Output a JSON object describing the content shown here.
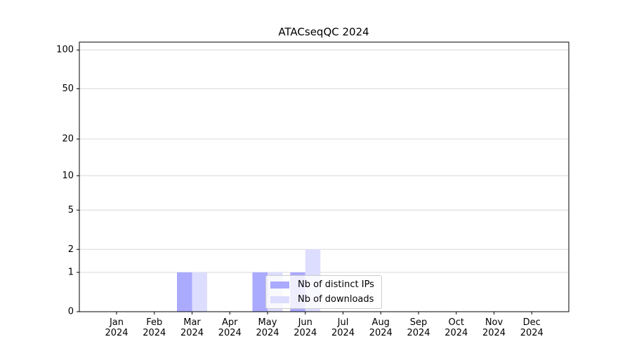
{
  "chart_data": {
    "type": "bar",
    "title": "ATACseqQC 2024",
    "categories": [
      "Jan 2024",
      "Feb 2024",
      "Mar 2024",
      "Apr 2024",
      "May 2024",
      "Jun 2024",
      "Jul 2024",
      "Aug 2024",
      "Sep 2024",
      "Oct 2024",
      "Nov 2024",
      "Dec 2024"
    ],
    "series": [
      {
        "name": "Nb of distinct IPs",
        "color": "#aaaaff",
        "values": [
          0,
          0,
          1,
          0,
          1,
          1,
          0,
          0,
          0,
          0,
          0,
          0
        ]
      },
      {
        "name": "Nb of downloads",
        "color": "#ddddff",
        "values": [
          0,
          0,
          1,
          0,
          1,
          2,
          0,
          0,
          0,
          0,
          0,
          0
        ]
      }
    ],
    "ylim": [
      0,
      115
    ],
    "yticks": [
      0,
      1,
      2,
      5,
      10,
      20,
      50,
      100
    ],
    "yscale": "log1p",
    "grid": true,
    "legend": "lower center"
  }
}
